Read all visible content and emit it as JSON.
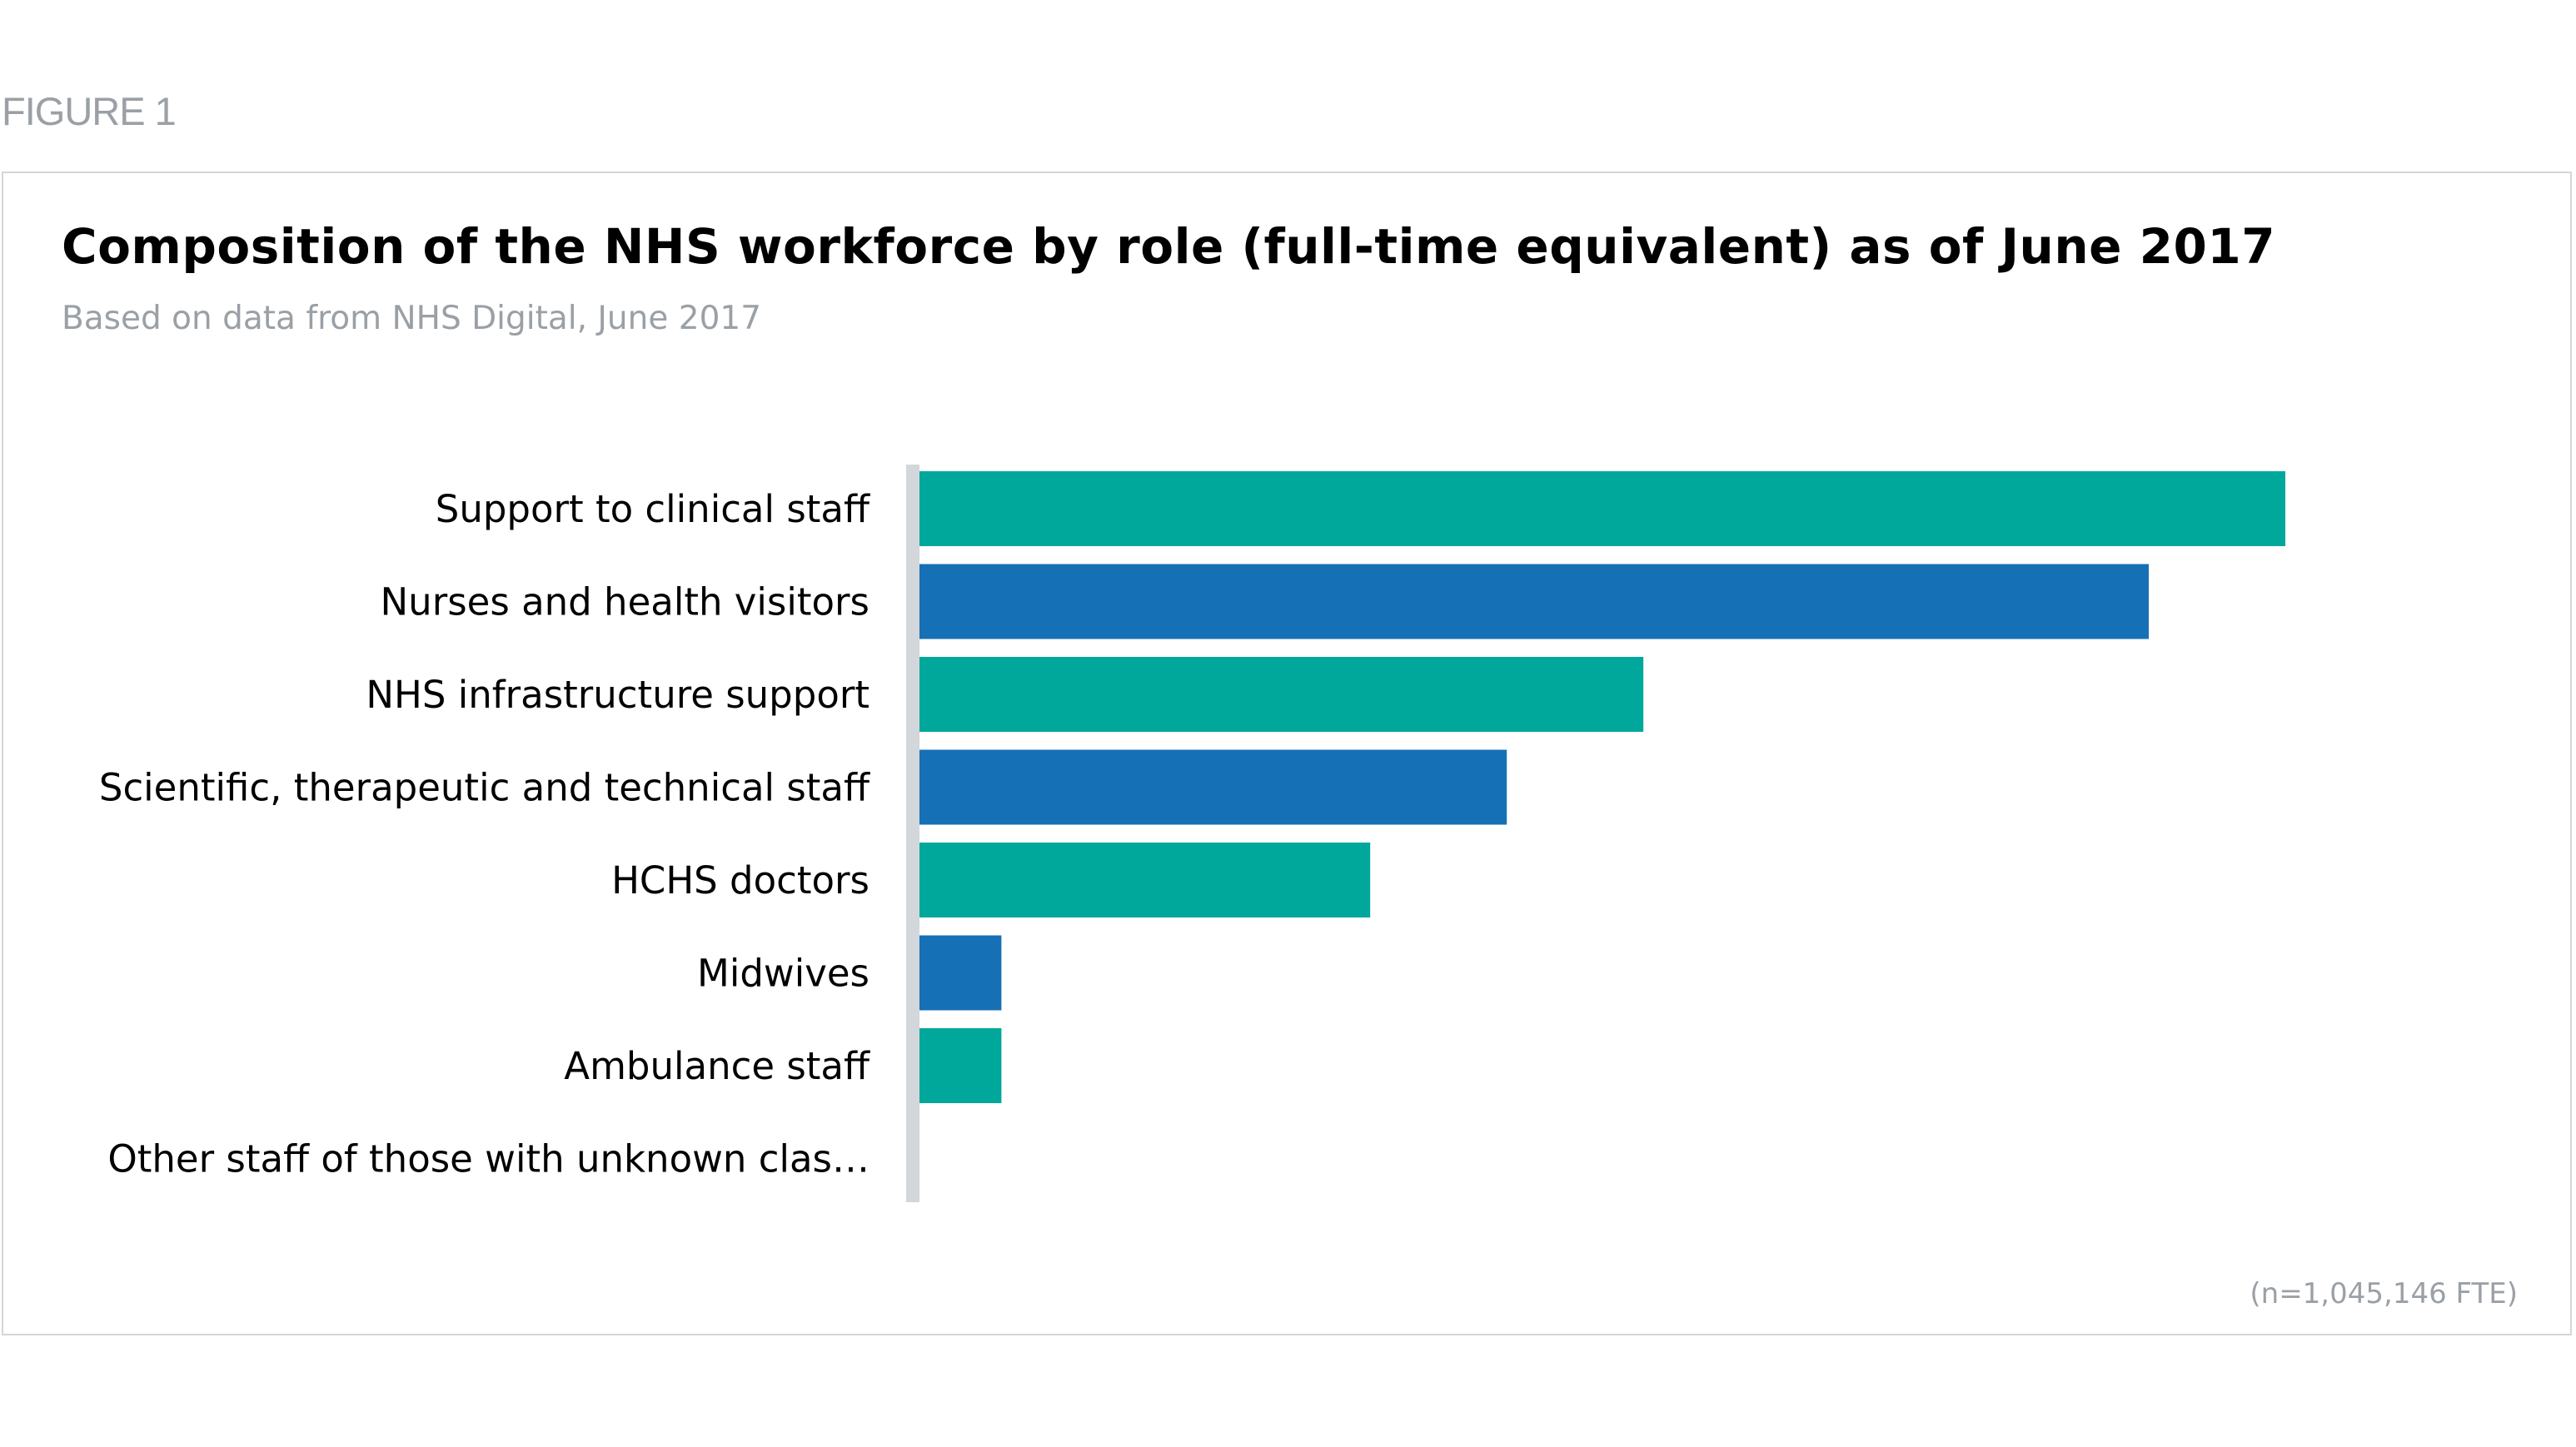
{
  "figure_label": "FIGURE 1",
  "footnote": "(n=1,045,146 FTE)",
  "colors": {
    "teal": "#00a79b",
    "blue": "#1670b5",
    "axis": "#d3d6da"
  },
  "chart_data": {
    "type": "bar",
    "orientation": "horizontal",
    "title": "Composition of the NHS workforce by role (full-time equivalent) as of June 2017",
    "subtitle": "Based on data from NHS Digital, June 2017",
    "xlabel": "",
    "ylabel": "",
    "grid": false,
    "legend": "none",
    "xlim": [
      0,
      1
    ],
    "categories": [
      "Support to clinical staff",
      "Nurses and health visitors",
      "NHS infrastructure support",
      "Scientific, therapeutic and technical staff",
      "HCHS doctors",
      "Midwives",
      "Ambulance staff",
      "Other staff of those with unknown clas…"
    ],
    "values": [
      1.0,
      0.9,
      0.53,
      0.43,
      0.33,
      0.06,
      0.06,
      0
    ],
    "bar_colors": [
      "#00a79b",
      "#1670b5",
      "#00a79b",
      "#1670b5",
      "#00a79b",
      "#1670b5",
      "#00a79b",
      "#1670b5"
    ]
  }
}
